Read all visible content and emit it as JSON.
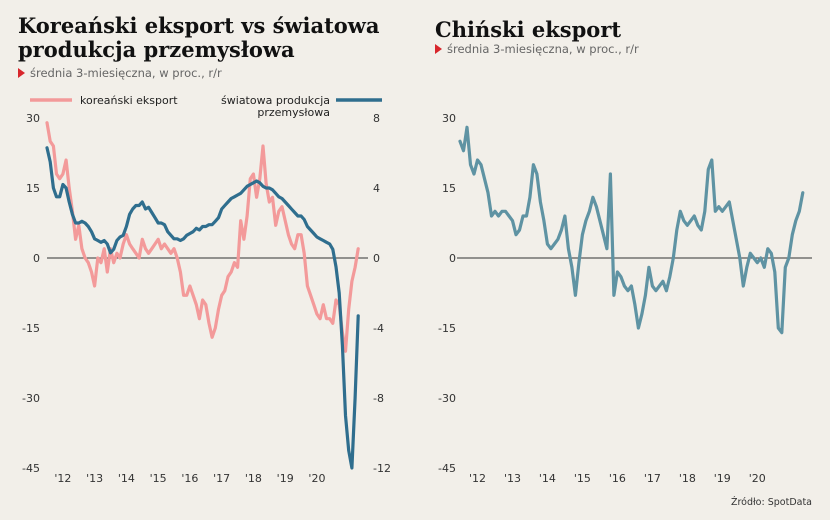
{
  "charts": {
    "left": {
      "title_line1": "Koreański eksport vs światowa",
      "title_line2": "produkcja przemysłowa",
      "subtitle": "średnia 3-miesięczna, w proc., r/r"
    },
    "right": {
      "title": "Chiński eksport",
      "subtitle": "średnia 3-miesięczna, w proc., r/r"
    }
  },
  "source": "Źródło: SpotData",
  "colors": {
    "korea": "#f39a9a",
    "world": "#2f6e8e",
    "china": "#5f93a3",
    "accent": "#d8262c",
    "background": "#f2efe9"
  },
  "chart_data": [
    {
      "type": "line",
      "title": "Koreański eksport vs światowa produkcja przemysłowa",
      "subtitle": "średnia 3-miesięczna, w proc., r/r",
      "x_ticks": [
        "'12",
        "'13",
        "'14",
        "'15",
        "'16",
        "'17",
        "'18",
        "'19",
        "'20"
      ],
      "x_range": [
        2011.0,
        2020.95
      ],
      "y_left": {
        "ticks": [
          "30",
          "15",
          "0",
          "-15",
          "-30",
          "-45"
        ],
        "values": [
          30,
          15,
          0,
          -15,
          -30,
          -45
        ],
        "range": [
          -45,
          30
        ]
      },
      "y_right": {
        "ticks": [
          "8",
          "4",
          "0",
          "-4",
          "-8",
          "-12"
        ],
        "values": [
          8,
          4,
          0,
          -4,
          -8,
          -12
        ],
        "range": [
          -12,
          8
        ]
      },
      "legend": [
        "koreański eksport",
        "światowa produkcja przemysłowa"
      ],
      "legend_lines": [
        "światowa produkcja",
        "przemysłowa"
      ],
      "series": [
        {
          "name": "koreański eksport",
          "axis": "left",
          "color": "#f39a9a",
          "x": [
            2011.0,
            2011.1,
            2011.2,
            2011.3,
            2011.4,
            2011.5,
            2011.6,
            2011.7,
            2011.8,
            2011.9,
            2012.0,
            2012.1,
            2012.2,
            2012.3,
            2012.4,
            2012.5,
            2012.6,
            2012.7,
            2012.8,
            2012.9,
            2013.0,
            2013.1,
            2013.2,
            2013.3,
            2013.4,
            2013.5,
            2013.6,
            2013.7,
            2013.8,
            2013.9,
            2014.0,
            2014.1,
            2014.2,
            2014.3,
            2014.4,
            2014.5,
            2014.6,
            2014.7,
            2014.8,
            2014.9,
            2015.0,
            2015.1,
            2015.2,
            2015.3,
            2015.4,
            2015.5,
            2015.6,
            2015.7,
            2015.8,
            2015.9,
            2016.0,
            2016.1,
            2016.2,
            2016.3,
            2016.4,
            2016.5,
            2016.6,
            2016.7,
            2016.8,
            2016.9,
            2017.0,
            2017.1,
            2017.2,
            2017.3,
            2017.4,
            2017.5,
            2017.6,
            2017.7,
            2017.8,
            2017.9,
            2018.0,
            2018.1,
            2018.2,
            2018.3,
            2018.4,
            2018.5,
            2018.6,
            2018.7,
            2018.8,
            2018.9,
            2019.0,
            2019.1,
            2019.2,
            2019.3,
            2019.4,
            2019.5,
            2019.6,
            2019.7,
            2019.8,
            2019.9,
            2020.0,
            2020.1,
            2020.2,
            2020.3,
            2020.4,
            2020.5,
            2020.6,
            2020.7,
            2020.8
          ],
          "values": [
            29,
            25,
            24,
            18,
            17,
            18,
            21,
            15,
            10,
            4,
            7,
            2,
            0,
            -1,
            -3,
            -6,
            0,
            -1,
            2,
            -3,
            2,
            -1,
            1,
            0,
            3,
            5,
            3,
            2,
            1,
            0,
            4,
            2,
            1,
            2,
            3,
            4,
            2,
            3,
            2,
            1,
            2,
            0,
            -3,
            -8,
            -8,
            -6,
            -8,
            -10,
            -13,
            -9,
            -10,
            -14,
            -17,
            -15,
            -11,
            -8,
            -7,
            -4,
            -3,
            -1,
            -2,
            8,
            4,
            9,
            17,
            18,
            13,
            17,
            24,
            16,
            12,
            13,
            7,
            10,
            11,
            8,
            5,
            3,
            2,
            5,
            5,
            1,
            -6,
            -8,
            -10,
            -12,
            -13,
            -10,
            -13,
            -13,
            -14,
            -9,
            -10,
            -16,
            -20,
            -11,
            -5,
            -2,
            2
          ]
        },
        {
          "name": "światowa produkcja przemysłowa",
          "axis": "right",
          "color": "#2f6e8e",
          "x": [
            2011.0,
            2011.1,
            2011.2,
            2011.3,
            2011.4,
            2011.5,
            2011.6,
            2011.7,
            2011.8,
            2011.9,
            2012.0,
            2012.1,
            2012.2,
            2012.3,
            2012.4,
            2012.5,
            2012.6,
            2012.7,
            2012.8,
            2012.9,
            2013.0,
            2013.1,
            2013.2,
            2013.3,
            2013.4,
            2013.5,
            2013.6,
            2013.7,
            2013.8,
            2013.9,
            2014.0,
            2014.1,
            2014.2,
            2014.3,
            2014.4,
            2014.5,
            2014.6,
            2014.7,
            2014.8,
            2014.9,
            2015.0,
            2015.1,
            2015.2,
            2015.3,
            2015.4,
            2015.5,
            2015.6,
            2015.7,
            2015.8,
            2015.9,
            2016.0,
            2016.1,
            2016.2,
            2016.3,
            2016.4,
            2016.5,
            2016.6,
            2016.7,
            2016.8,
            2016.9,
            2017.0,
            2017.1,
            2017.2,
            2017.3,
            2017.4,
            2017.5,
            2017.6,
            2017.7,
            2017.8,
            2017.9,
            2018.0,
            2018.1,
            2018.2,
            2018.3,
            2018.4,
            2018.5,
            2018.6,
            2018.7,
            2018.8,
            2018.9,
            2019.0,
            2019.1,
            2019.2,
            2019.3,
            2019.4,
            2019.5,
            2019.6,
            2019.7,
            2019.8,
            2019.9,
            2020.0,
            2020.1,
            2020.2,
            2020.3,
            2020.4,
            2020.5,
            2020.6,
            2020.7,
            2020.8
          ],
          "values": [
            6.3,
            5.5,
            4.0,
            3.5,
            3.5,
            4.2,
            4.0,
            3.2,
            2.5,
            2.0,
            2.0,
            2.1,
            2.0,
            1.8,
            1.5,
            1.1,
            1.0,
            0.9,
            1.0,
            0.8,
            0.3,
            0.5,
            1.0,
            1.2,
            1.3,
            1.8,
            2.5,
            2.8,
            3.0,
            3.0,
            3.2,
            2.8,
            2.9,
            2.6,
            2.3,
            2.0,
            2.0,
            1.9,
            1.5,
            1.3,
            1.1,
            1.1,
            1.0,
            1.1,
            1.3,
            1.4,
            1.5,
            1.7,
            1.6,
            1.8,
            1.8,
            1.9,
            1.9,
            2.1,
            2.3,
            2.8,
            3.0,
            3.2,
            3.4,
            3.5,
            3.6,
            3.7,
            3.9,
            4.1,
            4.2,
            4.3,
            4.4,
            4.3,
            4.1,
            4.0,
            4.0,
            3.9,
            3.7,
            3.5,
            3.4,
            3.2,
            3.0,
            2.8,
            2.6,
            2.4,
            2.4,
            2.2,
            1.8,
            1.6,
            1.4,
            1.2,
            1.1,
            1.0,
            0.9,
            0.8,
            0.5,
            -0.5,
            -2.0,
            -5.0,
            -9.0,
            -11.0,
            -12.0,
            -8.0,
            -3.3
          ]
        }
      ]
    },
    {
      "type": "line",
      "title": "Chiński eksport",
      "subtitle": "średnia 3-miesięczna, w proc., r/r",
      "x_ticks": [
        "'12",
        "'13",
        "'14",
        "'15",
        "'16",
        "'17",
        "'18",
        "'19",
        "'20"
      ],
      "x_range": [
        2011.0,
        2020.95
      ],
      "y_ticks": [
        "30",
        "15",
        "0",
        "-15",
        "-30",
        "-45"
      ],
      "y_tick_values": [
        30,
        15,
        0,
        -15,
        -30,
        -45
      ],
      "y_range": [
        -45,
        30
      ],
      "series": [
        {
          "name": "",
          "color": "#5f93a3",
          "x": [
            2011.0,
            2011.1,
            2011.2,
            2011.3,
            2011.4,
            2011.5,
            2011.6,
            2011.7,
            2011.8,
            2011.9,
            2012.0,
            2012.1,
            2012.2,
            2012.3,
            2012.4,
            2012.5,
            2012.6,
            2012.7,
            2012.8,
            2012.9,
            2013.0,
            2013.1,
            2013.2,
            2013.3,
            2013.4,
            2013.5,
            2013.6,
            2013.7,
            2013.8,
            2013.9,
            2014.0,
            2014.1,
            2014.2,
            2014.3,
            2014.4,
            2014.5,
            2014.6,
            2014.7,
            2014.8,
            2014.9,
            2015.0,
            2015.1,
            2015.2,
            2015.3,
            2015.4,
            2015.5,
            2015.6,
            2015.7,
            2015.8,
            2015.9,
            2016.0,
            2016.1,
            2016.2,
            2016.3,
            2016.4,
            2016.5,
            2016.6,
            2016.7,
            2016.8,
            2016.9,
            2017.0,
            2017.1,
            2017.2,
            2017.3,
            2017.4,
            2017.5,
            2017.6,
            2017.7,
            2017.8,
            2017.9,
            2018.0,
            2018.1,
            2018.2,
            2018.3,
            2018.4,
            2018.5,
            2018.6,
            2018.7,
            2018.8,
            2018.9,
            2019.0,
            2019.1,
            2019.2,
            2019.3,
            2019.4,
            2019.5,
            2019.6,
            2019.7,
            2019.8,
            2019.9,
            2020.0,
            2020.1,
            2020.2,
            2020.3,
            2020.4,
            2020.5,
            2020.6,
            2020.7,
            2020.8
          ],
          "values": [
            25,
            23,
            28,
            20,
            18,
            21,
            20,
            17,
            14,
            9,
            10,
            9,
            10,
            10,
            9,
            8,
            5,
            6,
            9,
            9,
            13,
            20,
            18,
            12,
            8,
            3,
            2,
            3,
            4,
            6,
            9,
            2,
            -2,
            -8,
            -1,
            5,
            8,
            10,
            13,
            11,
            8,
            5,
            2,
            18,
            -8,
            -3,
            -4,
            -6,
            -7,
            -6,
            -10,
            -15,
            -12,
            -8,
            -2,
            -6,
            -7,
            -6,
            -5,
            -7,
            -4,
            0,
            6,
            10,
            8,
            7,
            8,
            9,
            7,
            6,
            10,
            19,
            21,
            10,
            11,
            10,
            11,
            12,
            8,
            4,
            0,
            -6,
            -2,
            1,
            0,
            -1,
            0,
            -2,
            2,
            1,
            -3,
            -15,
            -16,
            -2,
            0,
            5,
            8,
            10,
            14
          ]
        }
      ]
    }
  ]
}
